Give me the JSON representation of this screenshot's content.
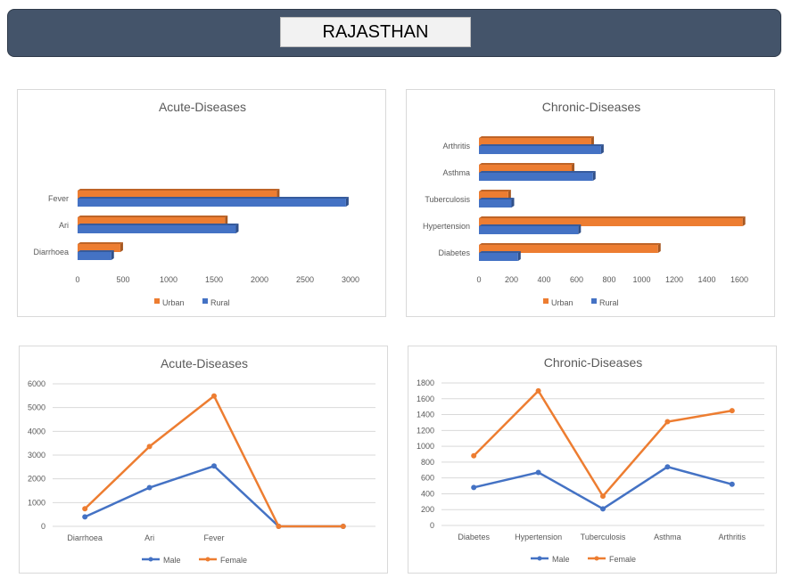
{
  "header": {
    "title": "RAJASTHAN"
  },
  "chart_data": [
    {
      "id": "acute-bar",
      "type": "bar",
      "orientation": "horizontal",
      "title": "Acute-Diseases",
      "categories": [
        "Diarrhoea",
        "Ari",
        "Fever"
      ],
      "series": [
        {
          "name": "Urban",
          "color": "#ed7d31",
          "values": [
            470,
            1620,
            2190
          ]
        },
        {
          "name": "Rural",
          "color": "#4472c4",
          "values": [
            370,
            1740,
            2950
          ]
        }
      ],
      "xlim": [
        0,
        3000
      ],
      "xticks": [
        "0",
        "500",
        "1000",
        "1500",
        "2000",
        "2500",
        "3000"
      ],
      "legend": "bottom",
      "grid": false
    },
    {
      "id": "chronic-bar",
      "type": "bar",
      "orientation": "horizontal",
      "title": "Chronic-Diseases",
      "categories": [
        "Diabetes",
        "Hypertension",
        "Tuberculosis",
        "Asthma",
        "Arthritis"
      ],
      "series": [
        {
          "name": "Urban",
          "color": "#ed7d31",
          "values": [
            1100,
            1620,
            180,
            570,
            690
          ]
        },
        {
          "name": "Rural",
          "color": "#4472c4",
          "values": [
            240,
            610,
            200,
            700,
            750
          ]
        }
      ],
      "xlim": [
        0,
        1600
      ],
      "xticks": [
        "0",
        "200",
        "400",
        "600",
        "800",
        "1000",
        "1200",
        "1400",
        "1600"
      ],
      "legend": "bottom",
      "grid": false
    },
    {
      "id": "acute-line",
      "type": "line",
      "title": "Acute-Diseases",
      "categories": [
        "Diarrhoea",
        "Ari",
        "Fever",
        "",
        ""
      ],
      "series": [
        {
          "name": "Male",
          "color": "#4472c4",
          "values": [
            400,
            1630,
            2540,
            0,
            0
          ]
        },
        {
          "name": "Female",
          "color": "#ed7d31",
          "values": [
            740,
            3360,
            5490,
            0,
            0
          ]
        }
      ],
      "ylim": [
        0,
        6000
      ],
      "yticks": [
        "0",
        "1000",
        "2000",
        "3000",
        "4000",
        "5000",
        "6000"
      ],
      "legend": "bottom",
      "grid": true
    },
    {
      "id": "chronic-line",
      "type": "line",
      "title": "Chronic-Diseases",
      "categories": [
        "Diabetes",
        "Hypertension",
        "Tuberculosis",
        "Asthma",
        "Arthritis"
      ],
      "series": [
        {
          "name": "Male",
          "color": "#4472c4",
          "values": [
            480,
            670,
            210,
            740,
            520
          ]
        },
        {
          "name": "Female",
          "color": "#ed7d31",
          "values": [
            880,
            1700,
            370,
            1310,
            1450
          ]
        }
      ],
      "ylim": [
        0,
        1800
      ],
      "yticks": [
        "0",
        "200",
        "400",
        "600",
        "800",
        "1000",
        "1200",
        "1400",
        "1600",
        "1800"
      ],
      "legend": "bottom",
      "grid": true
    }
  ]
}
